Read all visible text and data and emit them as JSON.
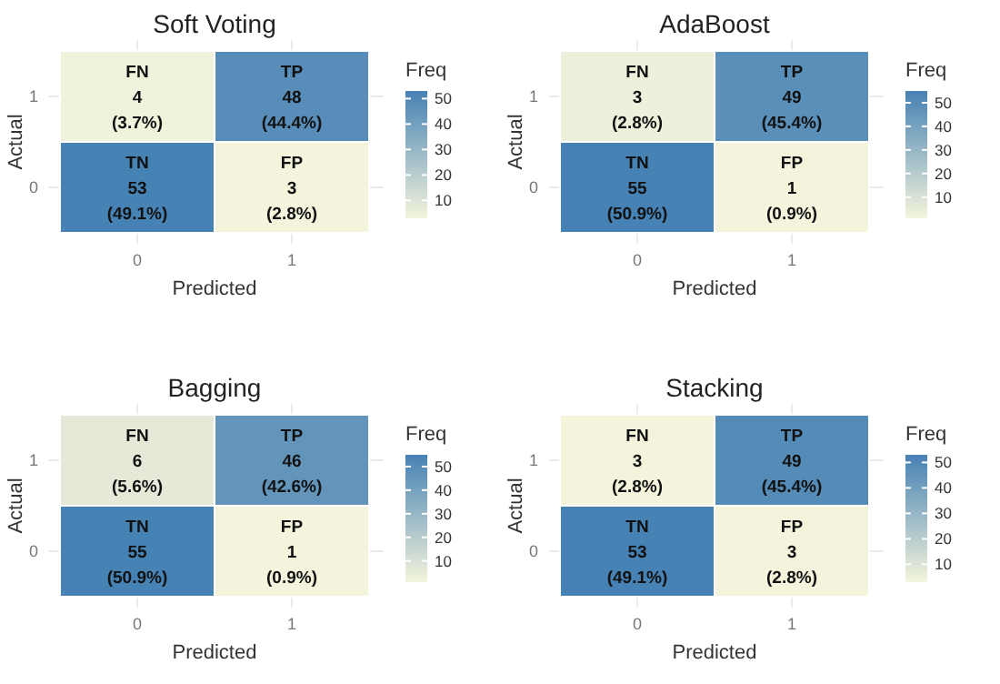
{
  "chart_data": [
    {
      "type": "heatmap",
      "title": "Soft Voting",
      "xlabel": "Predicted",
      "ylabel": "Actual",
      "clabel": "Freq",
      "categories": [
        "0",
        "1"
      ],
      "y_categories": [
        "1",
        "0"
      ],
      "cells": [
        [
          4,
          48
        ],
        [
          53,
          3
        ]
      ],
      "cell_labels": [
        [
          "FN\n4\n(3.7%)",
          "TP\n48\n(44.4%)"
        ],
        [
          "TN\n53\n(49.1%)",
          "FP\n3\n(2.8%)"
        ]
      ],
      "clim": [
        3,
        53
      ],
      "cticks": [
        10,
        20,
        30,
        40,
        50
      ],
      "grid": true
    },
    {
      "type": "heatmap",
      "title": "AdaBoost",
      "xlabel": "Predicted",
      "ylabel": "Actual",
      "clabel": "Freq",
      "categories": [
        "0",
        "1"
      ],
      "y_categories": [
        "1",
        "0"
      ],
      "cells": [
        [
          3,
          49
        ],
        [
          55,
          1
        ]
      ],
      "cell_labels": [
        [
          "FN\n3\n(2.8%)",
          "TP\n49\n(45.4%)"
        ],
        [
          "TN\n55\n(50.9%)",
          "FP\n1\n(0.9%)"
        ]
      ],
      "clim": [
        1,
        55
      ],
      "cticks": [
        10,
        20,
        30,
        40,
        50
      ],
      "grid": true
    },
    {
      "type": "heatmap",
      "title": "Bagging",
      "xlabel": "Predicted",
      "ylabel": "Actual",
      "clabel": "Freq",
      "categories": [
        "0",
        "1"
      ],
      "y_categories": [
        "1",
        "0"
      ],
      "cells": [
        [
          6,
          46
        ],
        [
          55,
          1
        ]
      ],
      "cell_labels": [
        [
          "FN\n6\n(5.6%)",
          "TP\n46\n(42.6%)"
        ],
        [
          "TN\n55\n(50.9%)",
          "FP\n1\n(0.9%)"
        ]
      ],
      "clim": [
        1,
        55
      ],
      "cticks": [
        10,
        20,
        30,
        40,
        50
      ],
      "grid": true
    },
    {
      "type": "heatmap",
      "title": "Stacking",
      "xlabel": "Predicted",
      "ylabel": "Actual",
      "clabel": "Freq",
      "categories": [
        "0",
        "1"
      ],
      "y_categories": [
        "1",
        "0"
      ],
      "cells": [
        [
          3,
          49
        ],
        [
          53,
          3
        ]
      ],
      "cell_labels": [
        [
          "FN\n3\n(2.8%)",
          "TP\n49\n(45.4%)"
        ],
        [
          "TN\n53\n(49.1%)",
          "FP\n3\n(2.8%)"
        ]
      ],
      "clim": [
        3,
        53
      ],
      "cticks": [
        10,
        20,
        30,
        40,
        50
      ],
      "grid": true
    }
  ]
}
